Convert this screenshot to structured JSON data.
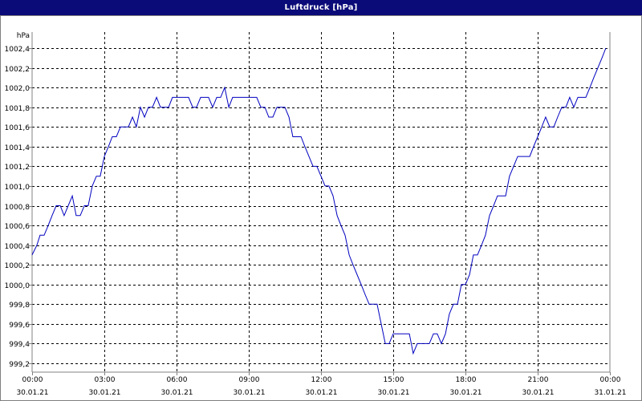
{
  "window": {
    "title": "Luftdruck [hPa]"
  },
  "chart_data": {
    "type": "line",
    "title": "Luftdruck [hPa]",
    "ylabel": "hPa",
    "xlabel": "",
    "ylim": [
      999.2,
      1002.5
    ],
    "xlim": [
      0,
      24
    ],
    "grid": true,
    "legend": "none",
    "colors": {
      "line": "#0000c0",
      "grid": "#000000",
      "axis": "#808080",
      "title_bg": "#0a0a78"
    },
    "y_ticks": [
      {
        "v": 999.2,
        "label": "999,2"
      },
      {
        "v": 999.4,
        "label": "999,4"
      },
      {
        "v": 999.6,
        "label": "999,6"
      },
      {
        "v": 999.8,
        "label": "999,8"
      },
      {
        "v": 1000.0,
        "label": "1000,0"
      },
      {
        "v": 1000.2,
        "label": "1000,2"
      },
      {
        "v": 1000.4,
        "label": "1000,4"
      },
      {
        "v": 1000.6,
        "label": "1000,6"
      },
      {
        "v": 1000.8,
        "label": "1000,8"
      },
      {
        "v": 1001.0,
        "label": "1001,0"
      },
      {
        "v": 1001.2,
        "label": "1001,2"
      },
      {
        "v": 1001.4,
        "label": "1001,4"
      },
      {
        "v": 1001.6,
        "label": "1001,6"
      },
      {
        "v": 1001.8,
        "label": "1001,8"
      },
      {
        "v": 1002.0,
        "label": "1002,0"
      },
      {
        "v": 1002.2,
        "label": "1002,2"
      },
      {
        "v": 1002.4,
        "label": "1002,4"
      }
    ],
    "x_ticks": [
      {
        "h": 0,
        "time": "00:00",
        "date": "30.01.21"
      },
      {
        "h": 3,
        "time": "03:00",
        "date": "30.01.21"
      },
      {
        "h": 6,
        "time": "06:00",
        "date": "30.01.21"
      },
      {
        "h": 9,
        "time": "09:00",
        "date": "30.01.21"
      },
      {
        "h": 12,
        "time": "12:00",
        "date": "30.01.21"
      },
      {
        "h": 15,
        "time": "15:00",
        "date": "30.01.21"
      },
      {
        "h": 18,
        "time": "18:00",
        "date": "30.01.21"
      },
      {
        "h": 21,
        "time": "21:00",
        "date": "30.01.21"
      },
      {
        "h": 24,
        "time": "00:00",
        "date": "31.01.21"
      }
    ],
    "series": [
      {
        "points": [
          [
            0.0,
            1000.3
          ],
          [
            0.2,
            1000.4
          ],
          [
            0.33,
            1000.5
          ],
          [
            0.5,
            1000.5
          ],
          [
            0.67,
            1000.6
          ],
          [
            0.83,
            1000.7
          ],
          [
            1.0,
            1000.8
          ],
          [
            1.17,
            1000.8
          ],
          [
            1.33,
            1000.7
          ],
          [
            1.5,
            1000.8
          ],
          [
            1.67,
            1000.9
          ],
          [
            1.83,
            1000.7
          ],
          [
            2.0,
            1000.7
          ],
          [
            2.17,
            1000.8
          ],
          [
            2.33,
            1000.8
          ],
          [
            2.5,
            1001.0
          ],
          [
            2.67,
            1001.1
          ],
          [
            2.83,
            1001.1
          ],
          [
            3.0,
            1001.3
          ],
          [
            3.17,
            1001.4
          ],
          [
            3.33,
            1001.5
          ],
          [
            3.5,
            1001.5
          ],
          [
            3.67,
            1001.6
          ],
          [
            3.83,
            1001.6
          ],
          [
            4.0,
            1001.6
          ],
          [
            4.17,
            1001.7
          ],
          [
            4.33,
            1001.6
          ],
          [
            4.5,
            1001.8
          ],
          [
            4.67,
            1001.7
          ],
          [
            4.83,
            1001.8
          ],
          [
            5.0,
            1001.8
          ],
          [
            5.17,
            1001.9
          ],
          [
            5.33,
            1001.8
          ],
          [
            5.5,
            1001.8
          ],
          [
            5.67,
            1001.8
          ],
          [
            5.83,
            1001.9
          ],
          [
            6.0,
            1001.9
          ],
          [
            6.17,
            1001.9
          ],
          [
            6.33,
            1001.9
          ],
          [
            6.5,
            1001.9
          ],
          [
            6.67,
            1001.8
          ],
          [
            6.83,
            1001.8
          ],
          [
            7.0,
            1001.9
          ],
          [
            7.17,
            1001.9
          ],
          [
            7.33,
            1001.9
          ],
          [
            7.5,
            1001.8
          ],
          [
            7.67,
            1001.9
          ],
          [
            7.83,
            1001.9
          ],
          [
            8.0,
            1002.0
          ],
          [
            8.17,
            1001.8
          ],
          [
            8.33,
            1001.9
          ],
          [
            8.5,
            1001.9
          ],
          [
            8.67,
            1001.9
          ],
          [
            8.83,
            1001.9
          ],
          [
            9.0,
            1001.9
          ],
          [
            9.17,
            1001.9
          ],
          [
            9.33,
            1001.9
          ],
          [
            9.5,
            1001.8
          ],
          [
            9.67,
            1001.8
          ],
          [
            9.83,
            1001.7
          ],
          [
            10.0,
            1001.7
          ],
          [
            10.17,
            1001.8
          ],
          [
            10.33,
            1001.8
          ],
          [
            10.5,
            1001.8
          ],
          [
            10.67,
            1001.7
          ],
          [
            10.83,
            1001.5
          ],
          [
            11.0,
            1001.5
          ],
          [
            11.17,
            1001.5
          ],
          [
            11.33,
            1001.4
          ],
          [
            11.5,
            1001.3
          ],
          [
            11.67,
            1001.2
          ],
          [
            11.83,
            1001.2
          ],
          [
            12.0,
            1001.1
          ],
          [
            12.17,
            1001.0
          ],
          [
            12.33,
            1001.0
          ],
          [
            12.5,
            1000.9
          ],
          [
            12.67,
            1000.7
          ],
          [
            12.83,
            1000.6
          ],
          [
            13.0,
            1000.5
          ],
          [
            13.17,
            1000.3
          ],
          [
            13.33,
            1000.2
          ],
          [
            13.5,
            1000.1
          ],
          [
            13.67,
            1000.0
          ],
          [
            13.83,
            999.9
          ],
          [
            14.0,
            999.8
          ],
          [
            14.17,
            999.8
          ],
          [
            14.33,
            999.8
          ],
          [
            14.5,
            999.6
          ],
          [
            14.67,
            999.4
          ],
          [
            14.83,
            999.4
          ],
          [
            15.0,
            999.5
          ],
          [
            15.17,
            999.5
          ],
          [
            15.33,
            999.5
          ],
          [
            15.5,
            999.5
          ],
          [
            15.67,
            999.5
          ],
          [
            15.83,
            999.3
          ],
          [
            16.0,
            999.4
          ],
          [
            16.17,
            999.4
          ],
          [
            16.33,
            999.4
          ],
          [
            16.5,
            999.4
          ],
          [
            16.67,
            999.5
          ],
          [
            16.83,
            999.5
          ],
          [
            17.0,
            999.4
          ],
          [
            17.17,
            999.5
          ],
          [
            17.33,
            999.7
          ],
          [
            17.5,
            999.8
          ],
          [
            17.67,
            999.8
          ],
          [
            17.83,
            1000.0
          ],
          [
            18.0,
            1000.0
          ],
          [
            18.17,
            1000.1
          ],
          [
            18.33,
            1000.3
          ],
          [
            18.5,
            1000.3
          ],
          [
            18.67,
            1000.4
          ],
          [
            18.83,
            1000.5
          ],
          [
            19.0,
            1000.7
          ],
          [
            19.17,
            1000.8
          ],
          [
            19.33,
            1000.9
          ],
          [
            19.5,
            1000.9
          ],
          [
            19.67,
            1000.9
          ],
          [
            19.83,
            1001.1
          ],
          [
            20.0,
            1001.2
          ],
          [
            20.17,
            1001.3
          ],
          [
            20.33,
            1001.3
          ],
          [
            20.5,
            1001.3
          ],
          [
            20.67,
            1001.3
          ],
          [
            20.83,
            1001.4
          ],
          [
            21.0,
            1001.5
          ],
          [
            21.17,
            1001.6
          ],
          [
            21.33,
            1001.7
          ],
          [
            21.5,
            1001.6
          ],
          [
            21.67,
            1001.6
          ],
          [
            21.83,
            1001.7
          ],
          [
            22.0,
            1001.8
          ],
          [
            22.17,
            1001.8
          ],
          [
            22.33,
            1001.9
          ],
          [
            22.5,
            1001.8
          ],
          [
            22.67,
            1001.9
          ],
          [
            22.83,
            1001.9
          ],
          [
            23.0,
            1001.9
          ],
          [
            23.17,
            1002.0
          ],
          [
            23.33,
            1002.1
          ],
          [
            23.5,
            1002.2
          ],
          [
            23.67,
            1002.3
          ],
          [
            23.83,
            1002.4
          ]
        ]
      }
    ]
  }
}
